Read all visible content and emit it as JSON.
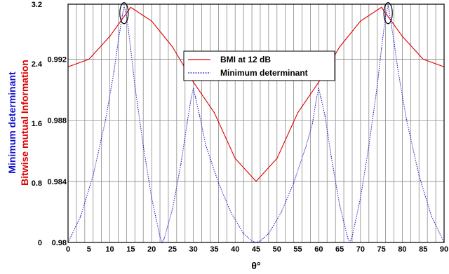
{
  "chart_data": {
    "type": "line",
    "xlabel": "θ°",
    "ylabel_left_outer": "Minimum determinant",
    "ylabel_left_inner": "Bitwise mutual Information",
    "xlim": [
      0,
      90
    ],
    "x_ticks": [
      0,
      5,
      10,
      15,
      20,
      25,
      30,
      35,
      40,
      45,
      50,
      55,
      60,
      65,
      70,
      75,
      80,
      85,
      90
    ],
    "y_outer": {
      "lim": [
        0,
        3.2
      ],
      "ticks": [
        0,
        0.8,
        1.6,
        2.4,
        3.2
      ],
      "tick_labels": [
        "0",
        "0.8",
        "1.6",
        "2.4",
        "3.2"
      ]
    },
    "y_inner": {
      "lim": [
        0.98,
        0.9956
      ],
      "ticks": [
        0.98,
        0.984,
        0.988,
        0.992
      ],
      "tick_labels": [
        "0.98",
        "0.984",
        "0.988",
        "0.992"
      ]
    },
    "grid": {
      "vertical_step": 2,
      "horizontal": "at inner axis ticks"
    },
    "legend_position": "center-right",
    "series": [
      {
        "name": "BMI at 12 dB",
        "axis": "inner",
        "color": "#dd0000",
        "style": "solid",
        "x": [
          0,
          5,
          10,
          15,
          20,
          25,
          30,
          35,
          40,
          45,
          50,
          55,
          60,
          65,
          70,
          75,
          80,
          85,
          90
        ],
        "y": [
          0.9915,
          0.992,
          0.9935,
          0.9954,
          0.9945,
          0.9928,
          0.9905,
          0.9885,
          0.9855,
          0.984,
          0.9855,
          0.9885,
          0.9905,
          0.9928,
          0.9945,
          0.9954,
          0.9935,
          0.992,
          0.9915
        ]
      },
      {
        "name": "Minimum determinant",
        "axis": "outer",
        "color": "#2222cc",
        "style": "dotted",
        "x": [
          0,
          3,
          6,
          9,
          11,
          12,
          13,
          13.4,
          14,
          15,
          16,
          18,
          20,
          22,
          22.5,
          23,
          25,
          27,
          28.5,
          29.5,
          30,
          30.5,
          31.5,
          33,
          36,
          39,
          42,
          44,
          45,
          46,
          48,
          51,
          54,
          57,
          58.5,
          59.5,
          60,
          60.5,
          61.5,
          63,
          65,
          67,
          67.5,
          68,
          70,
          72,
          74,
          75,
          76,
          76.6,
          77,
          78,
          79,
          81,
          84,
          87,
          90
        ],
        "y": [
          0,
          0.35,
          0.9,
          1.65,
          2.3,
          2.7,
          3.05,
          3.18,
          3.05,
          2.6,
          2.1,
          1.3,
          0.6,
          0.08,
          0,
          0.05,
          0.45,
          1.05,
          1.6,
          1.95,
          2.07,
          1.95,
          1.7,
          1.3,
          0.8,
          0.4,
          0.12,
          0.02,
          0,
          0.02,
          0.12,
          0.4,
          0.8,
          1.3,
          1.6,
          1.95,
          2.07,
          1.95,
          1.7,
          1.15,
          0.5,
          0.05,
          0,
          0.08,
          0.6,
          1.3,
          2.1,
          2.6,
          3.05,
          3.18,
          3.05,
          2.7,
          2.3,
          1.65,
          0.9,
          0.35,
          0
        ]
      }
    ],
    "annotations": [
      {
        "type": "ellipse",
        "x": 13.4,
        "axis": "outer",
        "y": 3.08,
        "note": "peak marker"
      },
      {
        "type": "ellipse",
        "x": 76.6,
        "axis": "outer",
        "y": 3.08,
        "note": "peak marker"
      }
    ]
  }
}
